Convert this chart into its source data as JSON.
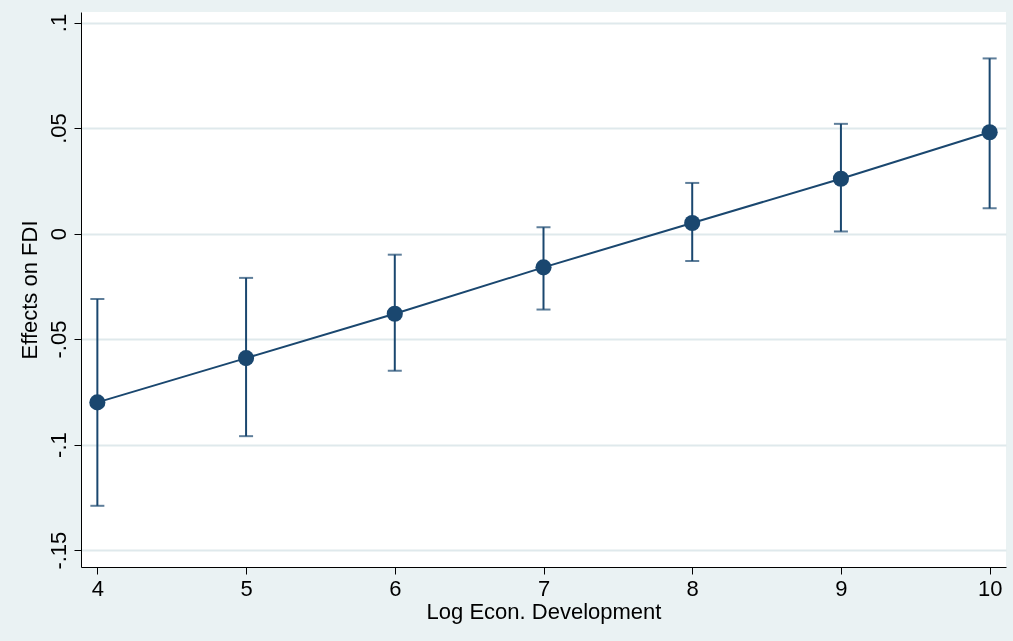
{
  "chart_data": {
    "type": "line",
    "xlabel": "Log Econ. Development",
    "ylabel": "Effects on FDI",
    "x": [
      4,
      5,
      6,
      7,
      8,
      9,
      10
    ],
    "series": [
      {
        "color": "#1a476f",
        "values": [
          -0.08,
          -0.059,
          -0.038,
          -0.016,
          0.005,
          0.026,
          0.048
        ],
        "errors": [
          [
            -0.129,
            -0.031
          ],
          [
            -0.096,
            -0.021
          ],
          [
            -0.065,
            -0.01
          ],
          [
            -0.036,
            0.003
          ],
          [
            -0.013,
            0.024
          ],
          [
            0.001,
            0.052
          ],
          [
            0.012,
            0.083
          ]
        ]
      }
    ],
    "xlim": [
      3.89,
      10.11
    ],
    "xticks": [
      4,
      5,
      6,
      7,
      8,
      9,
      10
    ],
    "ylim": [
      -0.158,
      0.105
    ],
    "yticks": [
      {
        "value": -0.15,
        "label": "-.15"
      },
      {
        "value": -0.1,
        "label": "-.1"
      },
      {
        "value": -0.05,
        "label": "-.05"
      },
      {
        "value": 0,
        "label": "0"
      },
      {
        "value": 0.05,
        "label": ".05"
      },
      {
        "value": 0.1,
        "label": ".1"
      }
    ],
    "grid": "y",
    "marker": "circle",
    "line_style": "solid"
  }
}
